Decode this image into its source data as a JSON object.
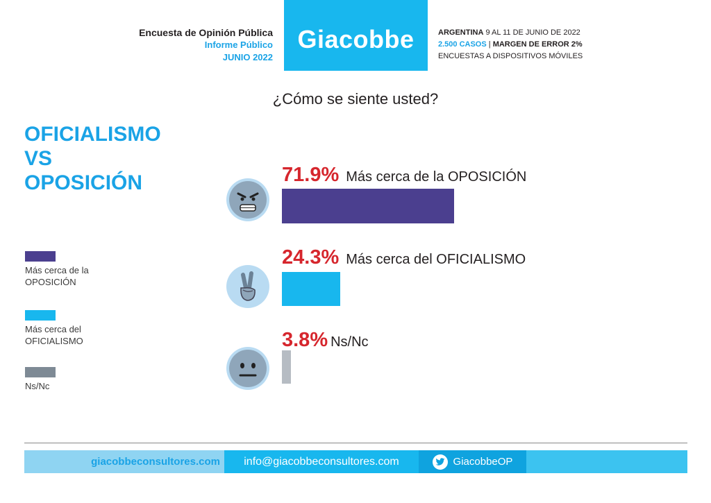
{
  "header": {
    "left_line1": "Encuesta de Opinión Pública",
    "left_line2": "Informe Público",
    "left_line3": "JUNIO 2022",
    "logo": "Giacobbe",
    "right_country": "ARGENTINA",
    "right_dates": "9 AL 11 DE JUNIO DE 2022",
    "right_cases": "2.500 CASOS",
    "right_sep": "|",
    "right_margin": "MARGEN DE ERROR 2%",
    "right_method": "ENCUESTAS A DISPOSITIVOS MÓVILES",
    "colors": {
      "brand": "#18b7ee",
      "accent_text": "#1aa3e6"
    }
  },
  "side_title": [
    "OFICIALISMO",
    "VS",
    "OPOSICIÓN"
  ],
  "footer": {
    "web": "giacobbeconsultores.com",
    "email": "info@giacobbeconsultores.com",
    "twitter": "GiacobbeOP",
    "twitter_icon": "twitter-bird-icon"
  },
  "chart_data": {
    "type": "bar",
    "title": "¿Cómo se siente usted?",
    "orientation": "horizontal",
    "xlim": [
      0,
      100
    ],
    "grid": false,
    "legend_placement": "left",
    "categories": [
      "Más cerca de la OPOSICIÓN",
      "Más cerca del OFICIALISMO",
      "Ns/Nc"
    ],
    "values": [
      71.9,
      24.3,
      3.8
    ],
    "value_labels": [
      "71.9%",
      "24.3%",
      "3.8%"
    ],
    "legend": [
      {
        "label_lines": [
          "Más cerca de la",
          "OPOSICIÓN"
        ],
        "color": "#4b3f8f"
      },
      {
        "label_lines": [
          "Más cerca del",
          "OFICIALISMO"
        ],
        "color": "#18b7ee"
      },
      {
        "label_lines": [
          "Ns/Nc"
        ],
        "color": "#7e8a95"
      }
    ],
    "bar_colors": [
      "#4b3f8f",
      "#18b7ee",
      "#b6bcc3"
    ],
    "value_label_color": "#d6262d",
    "icons": [
      "angry-face-icon",
      "victory-hand-icon",
      "neutral-face-icon"
    ]
  }
}
